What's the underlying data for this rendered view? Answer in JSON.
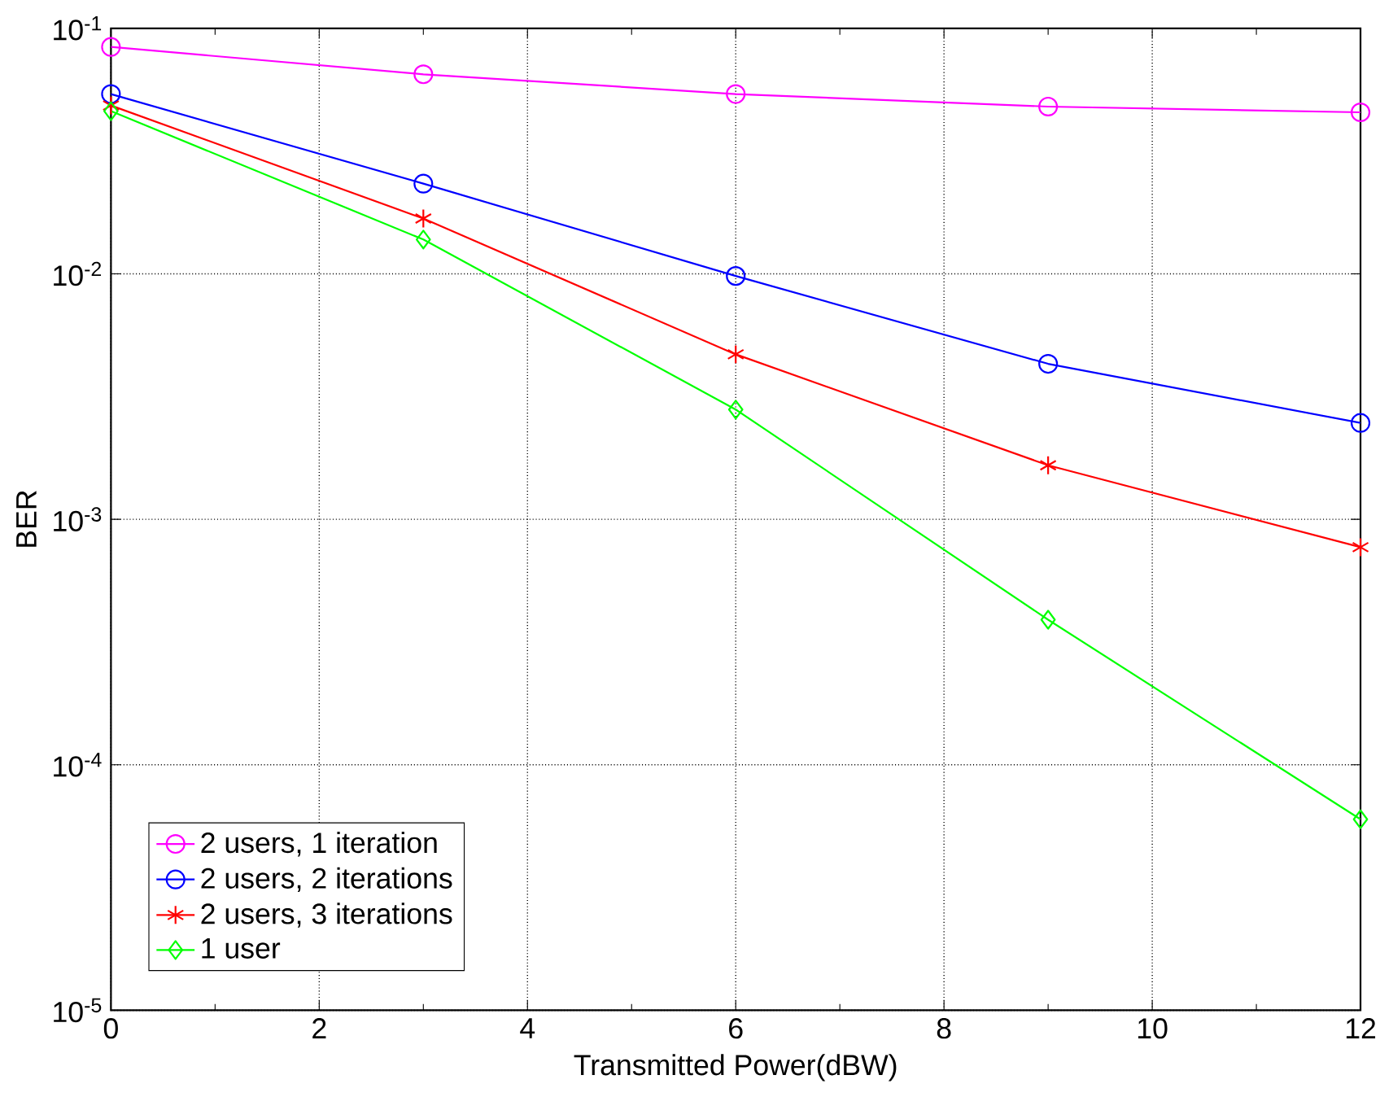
{
  "chart_data": {
    "type": "line",
    "xlabel": "Transmitted Power(dBW)",
    "ylabel": "BER",
    "x": [
      0,
      3,
      6,
      9,
      12
    ],
    "series": [
      {
        "name": "2 users, 1 iteration",
        "color": "#ff00ff",
        "marker": "circle",
        "values": [
          0.084,
          0.065,
          0.054,
          0.048,
          0.0455
        ]
      },
      {
        "name": "2 users, 2 iterations",
        "color": "#0000ff",
        "marker": "circle",
        "values": [
          0.054,
          0.0233,
          0.0098,
          0.0043,
          0.00247
        ]
      },
      {
        "name": "2 users, 3 iterations",
        "color": "#ff0000",
        "marker": "cross",
        "values": [
          0.0485,
          0.0168,
          0.0047,
          0.00166,
          0.00077
        ]
      },
      {
        "name": "1 user",
        "color": "#00ff00",
        "marker": "diamond",
        "values": [
          0.046,
          0.0138,
          0.0028,
          0.00039,
          6e-05
        ]
      }
    ],
    "xlim": [
      0,
      12
    ],
    "xticks": [
      0,
      2,
      4,
      6,
      8,
      10,
      12
    ],
    "ylim": [
      1e-05,
      0.1
    ],
    "yticks": [
      {
        "value": 1e-05,
        "label": "10$^{-5}$"
      },
      {
        "value": 0.0001,
        "label": "10$^{-4}$"
      },
      {
        "value": 0.001,
        "label": "10$^{-3}$"
      },
      {
        "value": 0.01,
        "label": "10$^{-2}$"
      },
      {
        "value": 0.1,
        "label": "10$^{-1}$"
      }
    ],
    "log": "y",
    "grid": true,
    "legend": "bottom left",
    "line_style": "solid"
  }
}
